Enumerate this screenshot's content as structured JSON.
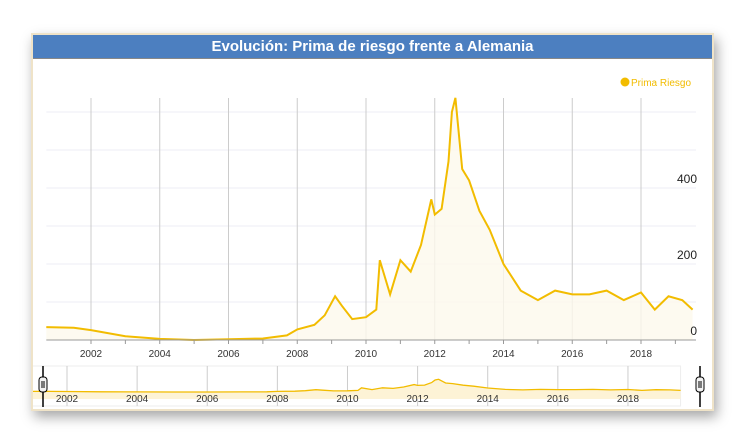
{
  "title": "Evolución: Prima de riesgo frente a Alemania",
  "chart_data": {
    "type": "line",
    "title": "Evolución: Prima de riesgo frente a Alemania",
    "xlabel": "",
    "ylabel": "",
    "legend": {
      "label": "Prima Riesgo",
      "position": "top-right"
    },
    "color": "#f2bc00",
    "xlim": [
      2000.7,
      2019.5
    ],
    "ylim": [
      0,
      640
    ],
    "x_ticks": [
      "2002",
      "2004",
      "2006",
      "2008",
      "2010",
      "2012",
      "2014",
      "2016",
      "2018"
    ],
    "y_ticks": [
      "0",
      "200",
      "400"
    ],
    "series": [
      {
        "name": "Prima Riesgo",
        "x": [
          2000.7,
          2001.5,
          2002,
          2003,
          2004,
          2005,
          2006,
          2007,
          2007.7,
          2008,
          2008.5,
          2008.8,
          2009.1,
          2009.3,
          2009.6,
          2010.0,
          2010.3,
          2010.4,
          2010.7,
          2011.0,
          2011.3,
          2011.6,
          2011.9,
          2012.0,
          2012.2,
          2012.4,
          2012.5,
          2012.6,
          2012.8,
          2013.0,
          2013.3,
          2013.6,
          2014.0,
          2014.5,
          2015.0,
          2015.5,
          2016.0,
          2016.5,
          2017.0,
          2017.5,
          2018.0,
          2018.4,
          2018.8,
          2019.2,
          2019.5
        ],
        "y": [
          34,
          32,
          26,
          10,
          3,
          0,
          2,
          4,
          12,
          28,
          40,
          65,
          115,
          90,
          55,
          60,
          80,
          210,
          120,
          210,
          180,
          250,
          370,
          330,
          345,
          470,
          600,
          637,
          450,
          420,
          340,
          290,
          200,
          130,
          105,
          130,
          120,
          120,
          130,
          105,
          125,
          80,
          115,
          105,
          80
        ]
      }
    ]
  }
}
